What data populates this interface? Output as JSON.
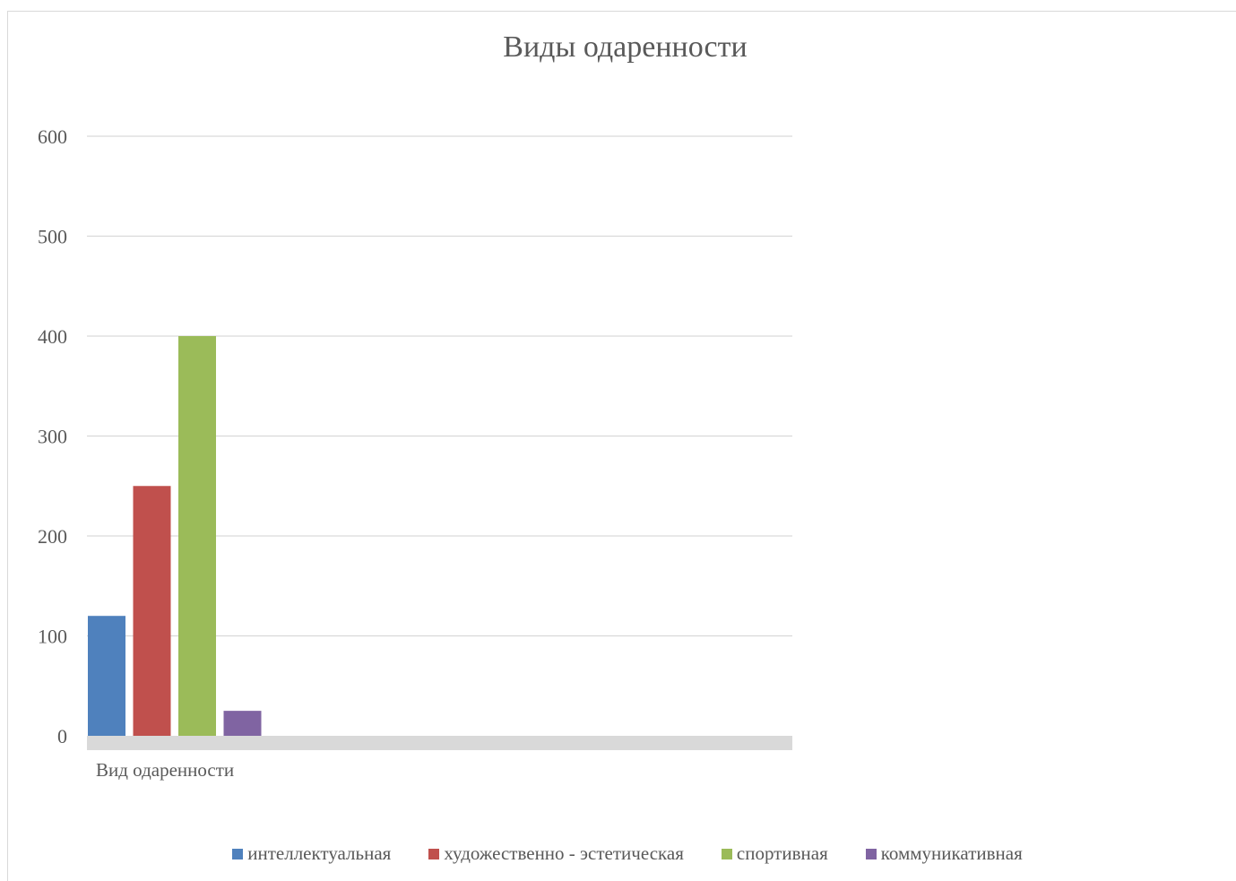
{
  "chart_data": {
    "type": "bar",
    "title": "Виды одаренности",
    "xlabel": "",
    "ylabel": "",
    "categories": [
      "Вид одаренности"
    ],
    "series": [
      {
        "name": "интеллектуальная",
        "values": [
          120
        ],
        "color": "#4f81bd"
      },
      {
        "name": "художественно - эстетическая",
        "values": [
          250
        ],
        "color": "#c0504d"
      },
      {
        "name": "спортивная",
        "values": [
          400
        ],
        "color": "#9bbb59"
      },
      {
        "name": "коммуникативная",
        "values": [
          25
        ],
        "color": "#8064a2"
      }
    ],
    "yticks": [
      "0",
      "100",
      "200",
      "300",
      "400",
      "500",
      "600"
    ],
    "ylim": [
      0,
      600
    ],
    "grid": true,
    "legend_position": "bottom",
    "colors": {
      "gridline": "#d9d9d9",
      "axis_band": "#d9d9d9",
      "text": "#595959"
    }
  }
}
